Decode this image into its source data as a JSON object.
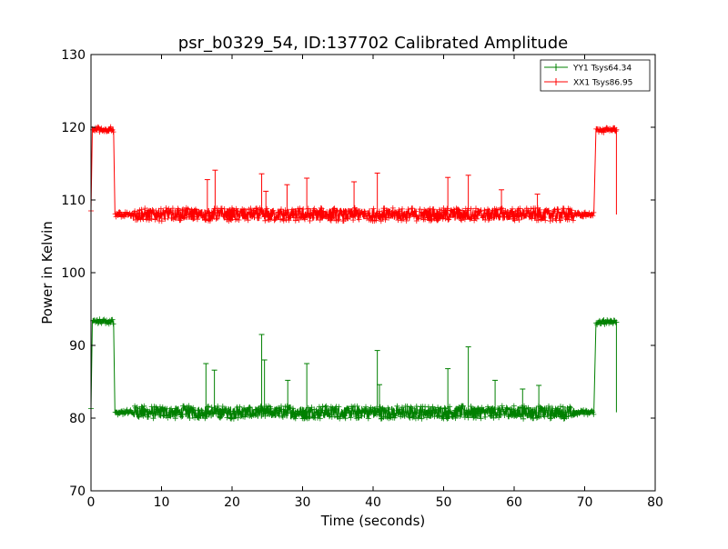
{
  "chart_data": {
    "type": "line",
    "title": "psr_b0329_54, ID:137702 Calibrated Amplitude",
    "xlabel": "Time (seconds)",
    "ylabel": "Power in Kelvin",
    "xlim": [
      0,
      80
    ],
    "ylim": [
      70,
      130
    ],
    "xticks": [
      0,
      10,
      20,
      30,
      40,
      50,
      60,
      70,
      80
    ],
    "yticks": [
      70,
      80,
      90,
      100,
      110,
      120,
      130
    ],
    "grid": false,
    "legend_position": "top-right",
    "series": [
      {
        "name": "YY1 Tsys64.34",
        "color": "#008000",
        "marker": "+",
        "segments": [
          {
            "x_start": 0.2,
            "x_end": 3.2,
            "level": 93.3
          },
          {
            "x_start": 3.4,
            "x_end": 71.3,
            "level": 80.8
          },
          {
            "x_start": 71.6,
            "x_end": 74.5,
            "level": 93.2
          }
        ],
        "end_level": 80.8,
        "spikes": [
          [
            16.3,
            87.5
          ],
          [
            17.5,
            86.6
          ],
          [
            24.2,
            91.5
          ],
          [
            24.6,
            88.0
          ],
          [
            27.9,
            85.2
          ],
          [
            30.6,
            87.5
          ],
          [
            40.6,
            89.3
          ],
          [
            50.6,
            86.8
          ],
          [
            53.5,
            89.8
          ],
          [
            57.3,
            85.2
          ],
          [
            40.9,
            84.6
          ],
          [
            61.2,
            84.0
          ],
          [
            63.5,
            84.5
          ]
        ]
      },
      {
        "name": "XX1 Tsys86.95",
        "color": "#ff0000",
        "marker": "+",
        "segments": [
          {
            "x_start": 0.2,
            "x_end": 3.2,
            "level": 119.7
          },
          {
            "x_start": 3.4,
            "x_end": 71.3,
            "level": 108.0
          },
          {
            "x_start": 71.6,
            "x_end": 74.5,
            "level": 119.6
          }
        ],
        "end_level": 108.0,
        "spikes": [
          [
            16.5,
            112.8
          ],
          [
            17.6,
            114.1
          ],
          [
            24.2,
            113.6
          ],
          [
            24.8,
            111.2
          ],
          [
            27.8,
            112.1
          ],
          [
            30.6,
            113.0
          ],
          [
            37.3,
            112.5
          ],
          [
            40.6,
            113.7
          ],
          [
            50.6,
            113.1
          ],
          [
            53.5,
            113.4
          ],
          [
            58.2,
            111.4
          ],
          [
            63.3,
            110.8
          ]
        ]
      }
    ]
  }
}
